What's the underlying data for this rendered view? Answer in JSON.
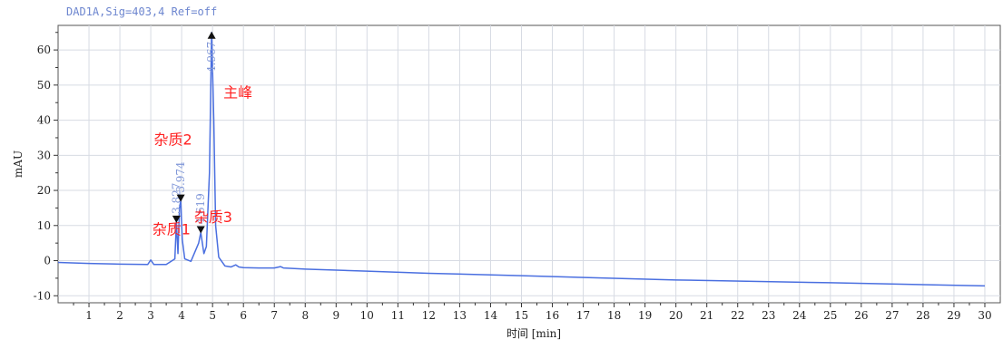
{
  "chart_data": {
    "type": "line",
    "title": "DAD1A,Sig=403,4  Ref=off",
    "xlabel": "时间 [min]",
    "ylabel": "mAU",
    "xlim": [
      0,
      30.5
    ],
    "ylim": [
      -12,
      67
    ],
    "x_ticks": [
      1,
      2,
      3,
      4,
      5,
      6,
      7,
      8,
      9,
      10,
      11,
      12,
      13,
      14,
      15,
      16,
      17,
      18,
      19,
      20,
      21,
      22,
      23,
      24,
      25,
      26,
      27,
      28,
      29,
      30
    ],
    "y_ticks": [
      -10,
      0,
      10,
      20,
      30,
      40,
      50,
      60
    ],
    "grid": true,
    "line_color": "#4a6fe0",
    "series": [
      {
        "x": [
          0,
          1,
          2,
          2.9,
          3.0,
          3.1,
          3.5,
          3.78,
          3.83,
          3.88,
          3.93,
          3.97,
          4.02,
          4.1,
          4.3,
          4.55,
          4.62,
          4.67,
          4.72,
          4.8,
          4.9,
          4.97,
          5.04,
          5.1,
          5.2,
          5.4,
          5.6,
          5.75,
          5.85,
          6.0,
          6.5,
          7.0,
          7.2,
          7.3,
          8,
          10,
          12,
          15,
          20,
          25,
          30
        ],
        "y": [
          -0.5,
          -0.8,
          -1.0,
          -1.1,
          0.2,
          -1.1,
          -1.1,
          0.5,
          11,
          2,
          15,
          17,
          6,
          0.5,
          -0.2,
          5,
          8,
          5,
          2,
          4,
          25,
          65,
          40,
          10,
          1,
          -1.5,
          -1.8,
          -1.2,
          -1.8,
          -2.0,
          -2.1,
          -2.1,
          -1.7,
          -2.1,
          -2.4,
          -3.0,
          -3.6,
          -4.3,
          -5.5,
          -6.3,
          -7.2
        ]
      }
    ],
    "peak_markers": [
      {
        "label": "3.827",
        "x": 3.83,
        "y": 11
      },
      {
        "label": "3.974",
        "x": 3.97,
        "y": 17
      },
      {
        "label": "4.619",
        "x": 4.62,
        "y": 8
      },
      {
        "label": "4.967",
        "x": 4.97,
        "y": 65
      }
    ],
    "annotations": [
      {
        "text": "杂质1",
        "x": 3.05,
        "y": 7.5
      },
      {
        "text": "杂质2",
        "x": 3.1,
        "y": 33
      },
      {
        "text": "杂质3",
        "x": 4.4,
        "y": 11
      },
      {
        "text": "主峰",
        "x": 5.35,
        "y": 46.5
      }
    ]
  }
}
